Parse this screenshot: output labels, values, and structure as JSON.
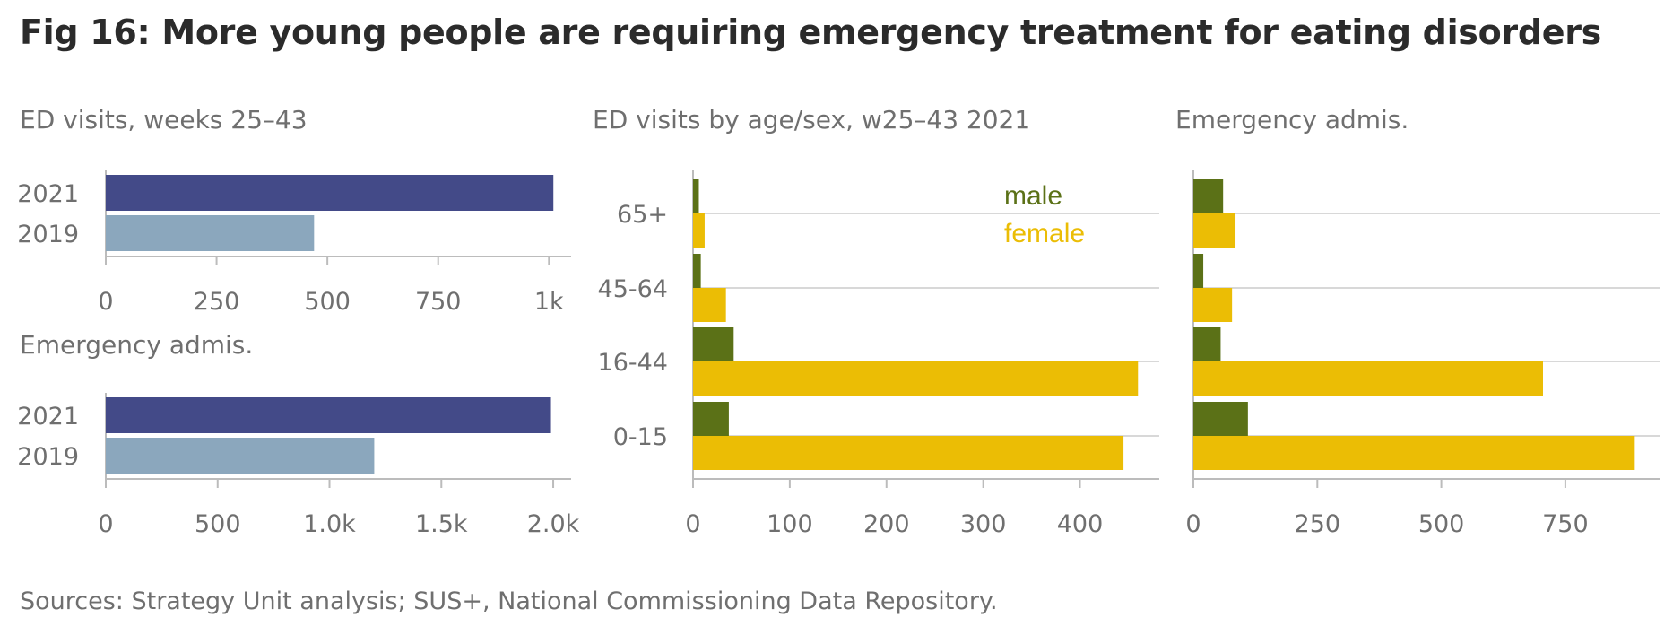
{
  "title": "Fig 16: More young people are requiring emergency treatment for eating disorders",
  "source": "Sources: Strategy Unit analysis; SUS+, National Commissioning Data Repository.",
  "colors": {
    "y2021": "#434a88",
    "y2019": "#8ba7bd",
    "male": "#5b7117",
    "female": "#ebbd05",
    "axis": "#bcbcbc",
    "grid": "#d8d8d8",
    "text": "#6f6f6f"
  },
  "chart_data": [
    {
      "type": "bar",
      "title": "ED visits, weeks 25–43",
      "orientation": "horizontal",
      "categories": [
        "2021",
        "2019"
      ],
      "values": [
        1010,
        470
      ],
      "xlim": [
        0,
        1050
      ],
      "ticks": [
        0,
        250,
        500,
        750,
        1000
      ],
      "tick_labels": [
        "0",
        "250",
        "500",
        "750",
        "1k"
      ]
    },
    {
      "type": "bar",
      "title": "Emergency admis.",
      "orientation": "horizontal",
      "categories": [
        "2021",
        "2019"
      ],
      "values": [
        1990,
        1200
      ],
      "xlim": [
        0,
        2080
      ],
      "ticks": [
        0,
        500,
        1000,
        1500,
        2000
      ],
      "tick_labels": [
        "0",
        "500",
        "1.0k",
        "1.5k",
        "2.0k"
      ]
    },
    {
      "type": "bar",
      "title": "ED visits by age/sex, w25–43 2021",
      "orientation": "horizontal",
      "categories": [
        "65+",
        "45-64",
        "16-44",
        "0-15"
      ],
      "series": [
        {
          "name": "male",
          "values": [
            6,
            8,
            42,
            37
          ]
        },
        {
          "name": "female",
          "values": [
            12,
            34,
            460,
            445
          ]
        }
      ],
      "xlim": [
        0,
        482
      ],
      "ticks": [
        0,
        100,
        200,
        300,
        400
      ],
      "tick_labels": [
        "0",
        "100",
        "200",
        "300",
        "400"
      ],
      "legend_placement": "top-right"
    },
    {
      "type": "bar",
      "title": "Emergency admis.",
      "orientation": "horizontal",
      "categories": [
        "65+",
        "45-64",
        "16-44",
        "0-15"
      ],
      "series": [
        {
          "name": "male",
          "values": [
            60,
            20,
            55,
            110
          ]
        },
        {
          "name": "female",
          "values": [
            85,
            78,
            705,
            890
          ]
        }
      ],
      "xlim": [
        0,
        940
      ],
      "ticks": [
        0,
        250,
        500,
        750
      ],
      "tick_labels": [
        "0",
        "250",
        "500",
        "750"
      ]
    }
  ]
}
